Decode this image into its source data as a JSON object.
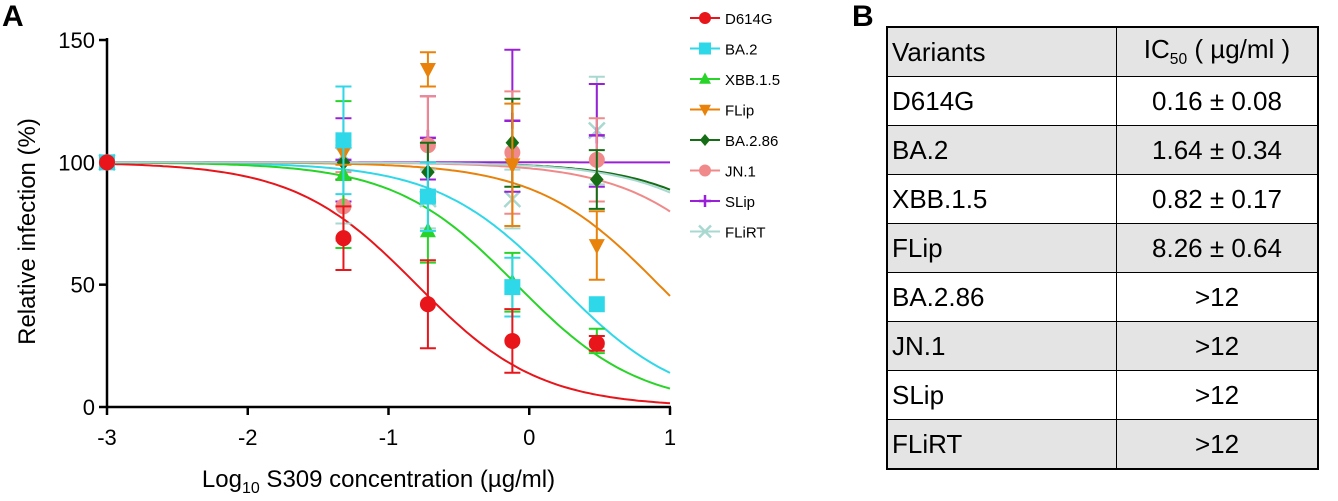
{
  "panels": {
    "a": "A",
    "b": "B"
  },
  "chart_data": {
    "type": "line",
    "title": "",
    "xlabel": "Log10 S309 concentration (µg/ml)",
    "ylabel": "Relative infection (%)",
    "xlim": [
      -3,
      1
    ],
    "ylim": [
      0,
      150
    ],
    "xticks": [
      -3,
      -2,
      -1,
      0,
      1
    ],
    "yticks": [
      0,
      50,
      100,
      150
    ],
    "grid": false,
    "legend_position": "top-right",
    "x": [
      -3,
      -1.32,
      -0.72,
      -0.12,
      0.48
    ],
    "series": [
      {
        "name": "D614G",
        "color": "#e8151b",
        "marker": "circle",
        "values": [
          100,
          69,
          42,
          27,
          26
        ],
        "errors": [
          0,
          13,
          18,
          13,
          3
        ],
        "curve_ic50": -0.8
      },
      {
        "name": "BA.2",
        "color": "#2fd8e8",
        "marker": "square",
        "values": [
          100,
          109,
          86,
          49,
          42
        ],
        "errors": [
          0,
          22,
          14,
          12,
          0
        ],
        "curve_ic50": 0.21
      },
      {
        "name": "XBB.1.5",
        "color": "#28d428",
        "marker": "triangle-up",
        "values": [
          100,
          95,
          72,
          51,
          27
        ],
        "errors": [
          0,
          30,
          13,
          12,
          5
        ],
        "curve_ic50": -0.09
      },
      {
        "name": "FLip",
        "color": "#e8820a",
        "marker": "triangle-down",
        "values": [
          100,
          104,
          138,
          99,
          66
        ],
        "errors": [
          0,
          5,
          7,
          25,
          14
        ],
        "curve_ic50": 0.92
      },
      {
        "name": "BA.2.86",
        "color": "#156e15",
        "marker": "diamond",
        "values": [
          100,
          100,
          96,
          108,
          93
        ],
        "errors": [
          0,
          7,
          12,
          18,
          12
        ],
        "curve_ic50": 1.9
      },
      {
        "name": "JN.1",
        "color": "#f08a8a",
        "marker": "circle",
        "values": [
          100,
          82,
          107,
          104,
          101
        ],
        "errors": [
          0,
          14,
          20,
          25,
          17
        ],
        "curve_ic50": 1.6
      },
      {
        "name": "SLip",
        "color": "#9a20d8",
        "marker": "plus",
        "values": [
          100,
          101,
          110,
          117,
          111
        ],
        "errors": [
          0,
          17,
          17,
          29,
          21
        ],
        "curve_ic50": 4.5
      },
      {
        "name": "FLiRT",
        "color": "#a8d8d0",
        "marker": "x",
        "values": [
          100,
          103,
          85,
          85,
          113
        ],
        "errors": [
          0,
          28,
          12,
          12,
          22
        ],
        "curve_ic50": 1.85
      }
    ]
  },
  "table": {
    "header": {
      "variant": "Variants",
      "ic50_main": "IC",
      "ic50_sub": "50",
      "ic50_unit": " ( µg/ml )"
    },
    "rows": [
      {
        "variant": "D614G",
        "ic50": "0.16 ± 0.08"
      },
      {
        "variant": "BA.2",
        "ic50": "1.64 ± 0.34"
      },
      {
        "variant": "XBB.1.5",
        "ic50": "0.82 ± 0.17"
      },
      {
        "variant": "FLip",
        "ic50": "8.26 ± 0.64"
      },
      {
        "variant": "BA.2.86",
        "ic50": ">12"
      },
      {
        "variant": "JN.1",
        "ic50": ">12"
      },
      {
        "variant": "SLip",
        "ic50": ">12"
      },
      {
        "variant": "FLiRT",
        "ic50": ">12"
      }
    ]
  }
}
